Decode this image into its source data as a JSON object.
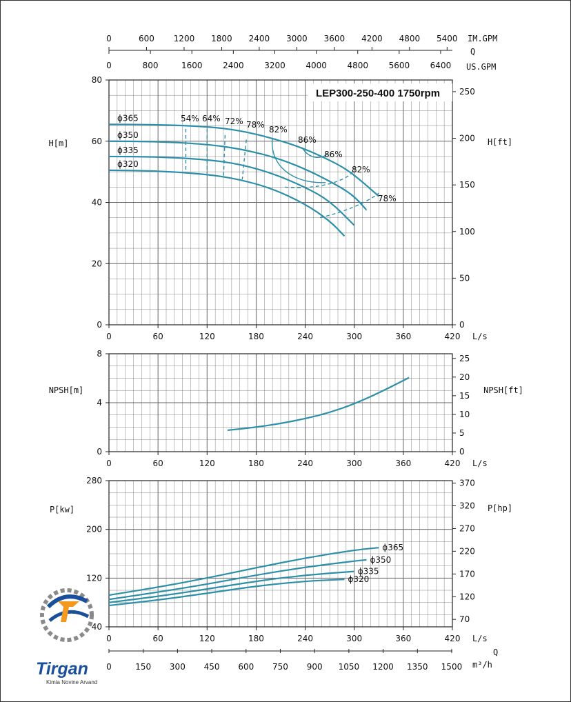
{
  "chart_data": [
    {
      "type": "line",
      "panel": "head",
      "title": "LEP300-250-400 1750rpm",
      "ylabel": "H[m]",
      "ylabel_right": "H[ft]",
      "xlabel_unit": "L/s",
      "xlim": [
        0,
        420
      ],
      "ylim": [
        0,
        80
      ],
      "x_ticks": [
        0,
        60,
        120,
        180,
        240,
        300,
        360,
        420
      ],
      "y_ticks": [
        0,
        20,
        40,
        60,
        80
      ],
      "y_right_ticks": [
        0,
        50,
        100,
        150,
        200,
        250
      ],
      "top_axes": [
        {
          "label": "IM.GPM",
          "ticks": [
            "0",
            "600",
            "1200",
            "1800",
            "2400",
            "3000",
            "3600",
            "4200",
            "4800",
            "5400"
          ]
        },
        {
          "label": "Q",
          "ticks": []
        },
        {
          "label": "US.GPM",
          "ticks": [
            "0",
            "800",
            "1600",
            "2400",
            "3200",
            "4000",
            "4800",
            "5600",
            "6400"
          ]
        }
      ],
      "grid": true,
      "series": [
        {
          "name": "ϕ365",
          "x": [
            0,
            60,
            120,
            160,
            200,
            240,
            280,
            300,
            330
          ],
          "y": [
            65.5,
            65.4,
            64.8,
            63.5,
            61.0,
            57.5,
            52.5,
            49.0,
            42.0
          ]
        },
        {
          "name": "ϕ350",
          "x": [
            0,
            60,
            120,
            160,
            200,
            240,
            280,
            300,
            315
          ],
          "y": [
            60.0,
            59.9,
            59.0,
            57.5,
            55.0,
            51.0,
            45.5,
            42.0,
            37.5
          ]
        },
        {
          "name": "ϕ335",
          "x": [
            0,
            60,
            120,
            160,
            200,
            240,
            270,
            300
          ],
          "y": [
            55.0,
            54.9,
            54.0,
            52.5,
            49.5,
            45.0,
            40.5,
            32.5
          ]
        },
        {
          "name": "ϕ320",
          "x": [
            0,
            60,
            120,
            160,
            200,
            240,
            270,
            288
          ],
          "y": [
            50.5,
            50.3,
            49.2,
            47.5,
            44.5,
            39.5,
            34.0,
            29.0
          ]
        }
      ],
      "efficiency_labels": [
        "54%",
        "64%",
        "72%",
        "78%",
        "82%",
        "86%",
        "86%",
        "82%",
        "78%"
      ]
    },
    {
      "type": "line",
      "panel": "npsh",
      "ylabel": "NPSH[m]",
      "ylabel_right": "NPSH[ft]",
      "xlabel_unit": "L/s",
      "xlim": [
        0,
        420
      ],
      "ylim": [
        0,
        8
      ],
      "x_ticks": [
        0,
        60,
        120,
        180,
        240,
        300,
        360,
        420
      ],
      "y_ticks": [
        0,
        4,
        8
      ],
      "y_right_ticks": [
        0,
        5,
        10,
        15,
        20,
        25
      ],
      "grid": true,
      "series": [
        {
          "x": [
            145,
            180,
            210,
            240,
            270,
            300,
            330,
            367
          ],
          "y": [
            1.75,
            2.0,
            2.3,
            2.7,
            3.2,
            3.9,
            4.8,
            6.05
          ]
        }
      ]
    },
    {
      "type": "line",
      "panel": "power",
      "ylabel": "P[kw]",
      "ylabel_right": "P[hp]",
      "xlabel_unit": "L/s",
      "xlim": [
        0,
        420
      ],
      "ylim": [
        40,
        280
      ],
      "x_ticks": [
        0,
        60,
        120,
        180,
        240,
        300,
        360,
        420
      ],
      "y_ticks": [
        40,
        120,
        200,
        280
      ],
      "y_right_ticks": [
        70,
        120,
        170,
        220,
        270,
        320,
        370
      ],
      "bottom_axes": [
        {
          "label": "Q",
          "ticks": []
        },
        {
          "label": "m³/h",
          "ticks": [
            "0",
            "150",
            "300",
            "450",
            "600",
            "750",
            "900",
            "1050",
            "1200",
            "1350",
            "1500"
          ]
        }
      ],
      "grid": true,
      "series": [
        {
          "name": "ϕ365",
          "x": [
            0,
            60,
            120,
            180,
            240,
            300,
            330
          ],
          "y": [
            92,
            105,
            120,
            137,
            153,
            166,
            170
          ]
        },
        {
          "name": "ϕ350",
          "x": [
            0,
            60,
            120,
            180,
            240,
            300,
            315
          ],
          "y": [
            85,
            97,
            110,
            125,
            138,
            148,
            150
          ]
        },
        {
          "name": "ϕ335",
          "x": [
            0,
            60,
            120,
            180,
            240,
            300
          ],
          "y": [
            80,
            90,
            102,
            115,
            125,
            131
          ]
        },
        {
          "name": "ϕ320",
          "x": [
            0,
            60,
            120,
            180,
            240,
            288
          ],
          "y": [
            75,
            84,
            95,
            107,
            115,
            118
          ]
        }
      ]
    }
  ],
  "logo": {
    "name": "Tirgan",
    "tagline": "Kimia Novine Arvand"
  },
  "colors": {
    "curve": "#2c8fa8",
    "grid": "#666666",
    "logo_blue": "#1a4f9c",
    "logo_orange": "#f39a1e"
  }
}
